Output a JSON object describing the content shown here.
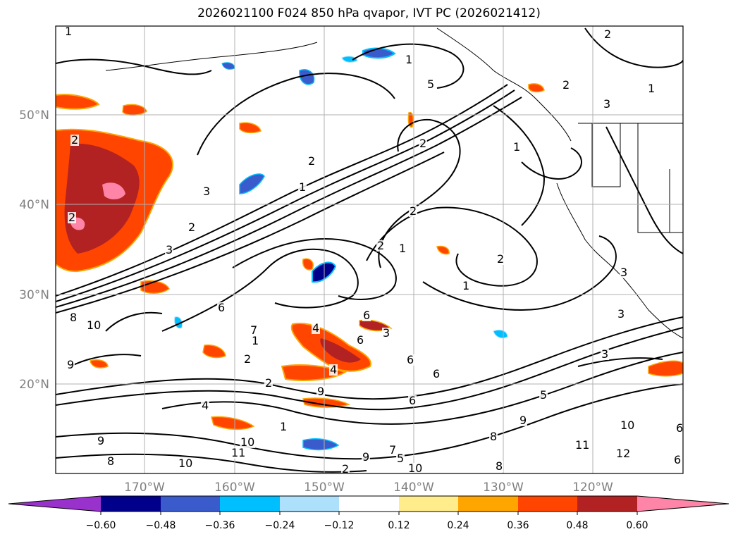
{
  "title": "2026021100 F024 850 hPa qvapor, IVT PC (2026021412)",
  "latitude_labels": [
    "50°N",
    "40°N",
    "30°N",
    "20°N"
  ],
  "longitude_labels": [
    "170°W",
    "160°W",
    "150°W",
    "140°W",
    "130°W",
    "120°W"
  ],
  "colorbar": {
    "colors": [
      "#9932CC",
      "#00008B",
      "#3A5BCC",
      "#00BFFF",
      "#ADE0FA",
      "#FFFFFF",
      "#FFEC8B",
      "#FFA500",
      "#FF4500",
      "#B22222",
      "#FF85A8"
    ],
    "tick_labels": [
      "−0.60",
      "−0.48",
      "−0.36",
      "−0.24",
      "−0.12",
      "0.12",
      "0.24",
      "0.36",
      "0.48",
      "0.60"
    ]
  },
  "contour_labels": [
    "1",
    "2",
    "1",
    "5",
    "2",
    "1",
    "2",
    "1",
    "2",
    "3",
    "2",
    "3",
    "2",
    "2",
    "3",
    "1",
    "2",
    "2",
    "1",
    "2",
    "3",
    "1",
    "6",
    "3",
    "4",
    "6",
    "3",
    "8",
    "10",
    "6",
    "7",
    "1",
    "6",
    "9",
    "2",
    "4",
    "6",
    "9",
    "6",
    "4",
    "5",
    "3",
    "8",
    "9",
    "10",
    "11",
    "10",
    "9",
    "8",
    "10",
    "11",
    "12",
    "6",
    "2",
    "1",
    "5",
    "7",
    "6",
    "9",
    "2",
    "8",
    "10"
  ]
}
